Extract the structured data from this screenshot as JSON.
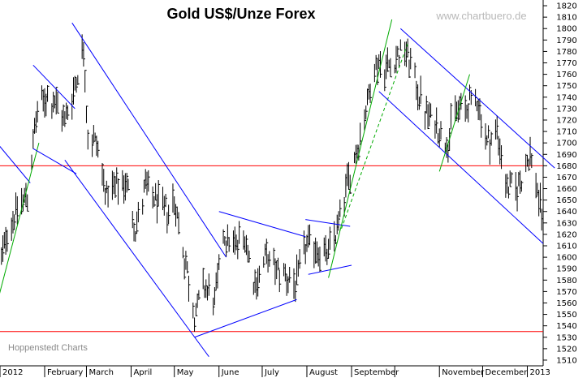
{
  "chart_data": {
    "type": "ohlc",
    "title": "Gold US$/Unze Forex",
    "watermark": "www.chartbuero.de",
    "source_note": "Hoppenstedt Charts",
    "xlabel": "",
    "ylabel": "",
    "ylim": [
      1505,
      1825
    ],
    "yticks": [
      1510,
      1520,
      1530,
      1540,
      1550,
      1560,
      1570,
      1580,
      1590,
      1600,
      1610,
      1620,
      1630,
      1640,
      1650,
      1660,
      1670,
      1680,
      1690,
      1700,
      1710,
      1720,
      1730,
      1740,
      1750,
      1760,
      1770,
      1780,
      1790,
      1800,
      1810,
      1820
    ],
    "x_axis": {
      "start": "2012-01-01",
      "end": "2013-01-12",
      "ticks": [
        {
          "date": "2012-01-01",
          "label": "2012"
        },
        {
          "date": "2012-02-01",
          "label": "February"
        },
        {
          "date": "2012-03-01",
          "label": "March"
        },
        {
          "date": "2012-04-01",
          "label": "April"
        },
        {
          "date": "2012-05-01",
          "label": "May"
        },
        {
          "date": "2012-06-01",
          "label": "June"
        },
        {
          "date": "2012-07-01",
          "label": "July"
        },
        {
          "date": "2012-08-01",
          "label": "August"
        },
        {
          "date": "2012-09-01",
          "label": "September"
        },
        {
          "date": "2012-10-01",
          "label": ""
        },
        {
          "date": "2012-11-01",
          "label": "November"
        },
        {
          "date": "2012-12-01",
          "label": "December"
        },
        {
          "date": "2013-01-01",
          "label": "2013"
        }
      ]
    },
    "price_path": [
      [
        "2011-12-30",
        1570
      ],
      [
        "2012-01-05",
        1620
      ],
      [
        "2012-01-12",
        1640
      ],
      [
        "2012-01-20",
        1655
      ],
      [
        "2012-01-26",
        1720
      ],
      [
        "2012-02-01",
        1740
      ],
      [
        "2012-02-08",
        1735
      ],
      [
        "2012-02-15",
        1720
      ],
      [
        "2012-02-21",
        1745
      ],
      [
        "2012-02-28",
        1785
      ],
      [
        "2012-03-02",
        1705
      ],
      [
        "2012-03-08",
        1700
      ],
      [
        "2012-03-15",
        1655
      ],
      [
        "2012-03-22",
        1660
      ],
      [
        "2012-03-29",
        1665
      ],
      [
        "2012-04-04",
        1625
      ],
      [
        "2012-04-11",
        1660
      ],
      [
        "2012-04-18",
        1650
      ],
      [
        "2012-04-25",
        1640
      ],
      [
        "2012-05-01",
        1650
      ],
      [
        "2012-05-08",
        1600
      ],
      [
        "2012-05-15",
        1550
      ],
      [
        "2012-05-22",
        1575
      ],
      [
        "2012-05-29",
        1560
      ],
      [
        "2012-06-04",
        1620
      ],
      [
        "2012-06-12",
        1610
      ],
      [
        "2012-06-19",
        1620
      ],
      [
        "2012-06-26",
        1575
      ],
      [
        "2012-07-03",
        1600
      ],
      [
        "2012-07-10",
        1590
      ],
      [
        "2012-07-17",
        1585
      ],
      [
        "2012-07-24",
        1575
      ],
      [
        "2012-07-31",
        1610
      ],
      [
        "2012-08-07",
        1610
      ],
      [
        "2012-08-14",
        1600
      ],
      [
        "2012-08-21",
        1620
      ],
      [
        "2012-08-28",
        1660
      ],
      [
        "2012-09-04",
        1690
      ],
      [
        "2012-09-11",
        1730
      ],
      [
        "2012-09-18",
        1770
      ],
      [
        "2012-09-25",
        1765
      ],
      [
        "2012-10-02",
        1775
      ],
      [
        "2012-10-09",
        1780
      ],
      [
        "2012-10-16",
        1750
      ],
      [
        "2012-10-23",
        1725
      ],
      [
        "2012-10-30",
        1715
      ],
      [
        "2012-11-06",
        1700
      ],
      [
        "2012-11-13",
        1730
      ],
      [
        "2012-11-20",
        1730
      ],
      [
        "2012-11-27",
        1740
      ],
      [
        "2012-12-04",
        1700
      ],
      [
        "2012-12-11",
        1710
      ],
      [
        "2012-12-18",
        1660
      ],
      [
        "2012-12-25",
        1660
      ],
      [
        "2013-01-03",
        1690
      ],
      [
        "2013-01-08",
        1660
      ],
      [
        "2013-01-11",
        1635
      ]
    ],
    "horizontal_lines": [
      {
        "value": 1680,
        "color": "#ff0000"
      },
      {
        "value": 1535,
        "color": "#ff0000"
      }
    ],
    "trend_lines": [
      {
        "from": [
          "2011-12-20",
          1715
        ],
        "to": [
          "2012-01-22",
          1665
        ],
        "color": "#0000ff",
        "style": "solid"
      },
      {
        "from": [
          "2011-12-30",
          1560
        ],
        "to": [
          "2012-01-28",
          1700
        ],
        "color": "#00aa00",
        "style": "solid"
      },
      {
        "from": [
          "2012-01-24",
          1768
        ],
        "to": [
          "2012-02-22",
          1730
        ],
        "color": "#0000ff",
        "style": "solid"
      },
      {
        "from": [
          "2012-01-24",
          1695
        ],
        "to": [
          "2012-02-23",
          1673
        ],
        "color": "#0000ff",
        "style": "solid"
      },
      {
        "from": [
          "2012-02-20",
          1805
        ],
        "to": [
          "2012-06-06",
          1600
        ],
        "color": "#0000ff",
        "style": "solid"
      },
      {
        "from": [
          "2012-02-15",
          1685
        ],
        "to": [
          "2012-05-25",
          1513
        ],
        "color": "#0000ff",
        "style": "solid"
      },
      {
        "from": [
          "2012-05-15",
          1530
        ],
        "to": [
          "2012-07-25",
          1563
        ],
        "color": "#0000ff",
        "style": "solid"
      },
      {
        "from": [
          "2012-06-01",
          1640
        ],
        "to": [
          "2012-07-31",
          1618
        ],
        "color": "#0000ff",
        "style": "solid"
      },
      {
        "from": [
          "2012-07-31",
          1633
        ],
        "to": [
          "2012-08-31",
          1627
        ],
        "color": "#0000ff",
        "style": "solid"
      },
      {
        "from": [
          "2012-08-02",
          1585
        ],
        "to": [
          "2012-09-01",
          1593
        ],
        "color": "#0000ff",
        "style": "solid"
      },
      {
        "from": [
          "2012-08-16",
          1582
        ],
        "to": [
          "2012-09-29",
          1808
        ],
        "color": "#00aa00",
        "style": "solid"
      },
      {
        "from": [
          "2012-08-25",
          1625
        ],
        "to": [
          "2012-10-10",
          1787
        ],
        "color": "#00aa00",
        "style": "dashed"
      },
      {
        "from": [
          "2012-10-05",
          1800
        ],
        "to": [
          "2013-01-20",
          1678
        ],
        "color": "#0000ff",
        "style": "solid"
      },
      {
        "from": [
          "2012-09-20",
          1745
        ],
        "to": [
          "2013-01-12",
          1612
        ],
        "color": "#0000ff",
        "style": "solid"
      },
      {
        "from": [
          "2012-11-01",
          1675
        ],
        "to": [
          "2012-11-22",
          1760
        ],
        "color": "#00aa00",
        "style": "solid"
      }
    ]
  }
}
